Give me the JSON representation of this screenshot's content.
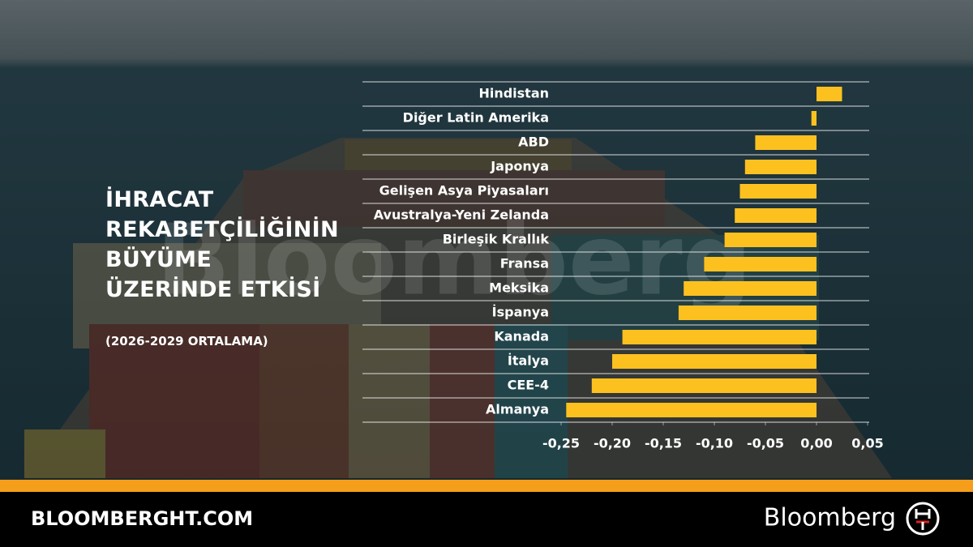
{
  "chart_data": {
    "type": "hbar",
    "title": "İHRACAT\nREKABETÇİLİĞİNİN\nBÜYÜME\nÜZERİNDE ETKİSİ",
    "subtitle": "(2026-2029 ORTALAMA)",
    "categories": [
      "Hindistan",
      "Diğer Latin Amerika",
      "ABD",
      "Japonya",
      "Gelişen Asya Piyasaları",
      "Avustralya-Yeni Zelanda",
      "Birleşik Krallık",
      "Fransa",
      "Meksika",
      "İspanya",
      "Kanada",
      "İtalya",
      "CEE-4",
      "Almanya"
    ],
    "values": [
      0.025,
      -0.005,
      -0.06,
      -0.07,
      -0.075,
      -0.08,
      -0.09,
      -0.11,
      -0.13,
      -0.135,
      -0.19,
      -0.2,
      -0.22,
      -0.245
    ],
    "color": "#fdc11f",
    "xlim": [
      -0.25,
      0.05
    ],
    "xticks": [
      {
        "value": -0.25,
        "label": "-0,25"
      },
      {
        "value": -0.2,
        "label": "-0,20"
      },
      {
        "value": -0.15,
        "label": "-0,15"
      },
      {
        "value": -0.1,
        "label": "-0,10"
      },
      {
        "value": -0.05,
        "label": "-0,05"
      },
      {
        "value": 0,
        "label": "0,00"
      },
      {
        "value": 0.05,
        "label": "0,05"
      }
    ],
    "grid": true
  },
  "watermark": "Bloomberg",
  "footer": {
    "site": "BLOOMBERGHT.COM",
    "brand": "Bloomberg"
  }
}
